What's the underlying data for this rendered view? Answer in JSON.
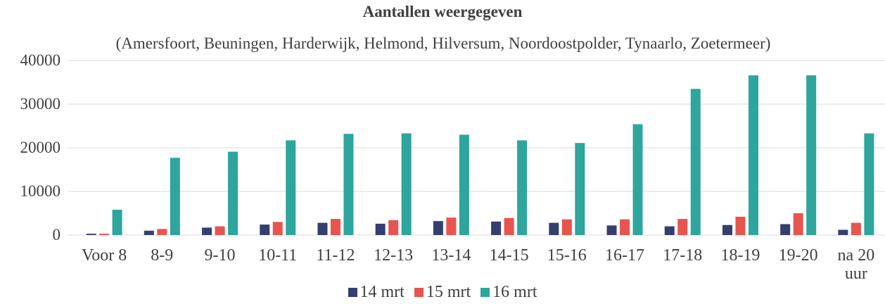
{
  "chart_data": {
    "type": "bar",
    "title": "Aantallen weergegeven",
    "subtitle": "(Amersfoort, Beuningen, Harderwijk, Helmond, Hilversum, Noordoostpolder, Tynaarlo, Zoetermeer)",
    "categories": [
      "Voor 8",
      "8-9",
      "9-10",
      "10-11",
      "11-12",
      "12-13",
      "13-14",
      "14-15",
      "15-16",
      "16-17",
      "17-18",
      "18-19",
      "19-20",
      "na 20 uur"
    ],
    "series": [
      {
        "name": "14 mrt",
        "color": "#353f6e",
        "values": [
          300,
          1000,
          1700,
          2400,
          2800,
          2600,
          3200,
          3100,
          2800,
          2200,
          2000,
          2300,
          2500,
          1200
        ]
      },
      {
        "name": "15 mrt",
        "color": "#e8554e",
        "values": [
          300,
          1400,
          2000,
          3000,
          3700,
          3400,
          4000,
          3900,
          3600,
          3600,
          3700,
          4200,
          5000,
          2800
        ]
      },
      {
        "name": "16 mrt",
        "color": "#2ea59d",
        "values": [
          5800,
          17700,
          19100,
          21700,
          23200,
          23300,
          23000,
          21700,
          21100,
          25400,
          33500,
          36600,
          36600,
          23300
        ]
      }
    ],
    "ylim": [
      0,
      40000
    ],
    "yticks": [
      0,
      10000,
      20000,
      30000,
      40000
    ],
    "grid": true,
    "legend": "bottom"
  }
}
